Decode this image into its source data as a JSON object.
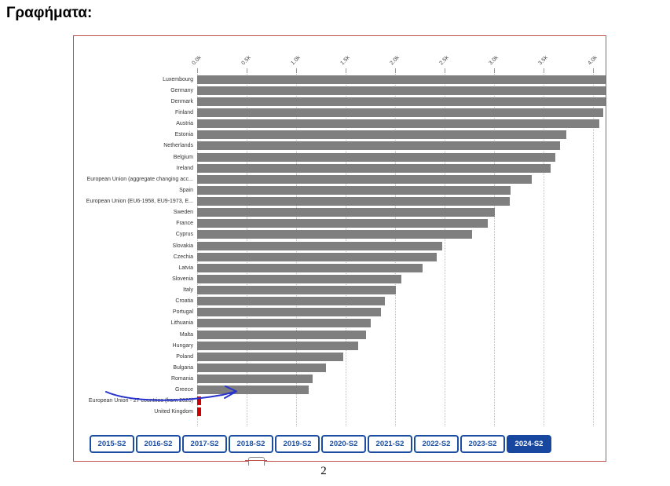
{
  "page": {
    "title": "Γραφήματα:",
    "page_number": "2"
  },
  "chart_data": {
    "type": "bar",
    "orientation": "horizontal",
    "title": "",
    "xlabel": "",
    "ylabel": "",
    "x_tick_labels": [
      "0.0k",
      "0.5k",
      "1.0k",
      "1.5k",
      "2.0k",
      "2.5k",
      "3.0k",
      "3.5k",
      "4.0k"
    ],
    "x_range_k": [
      0.0,
      4.0
    ],
    "grid": "vertical-dotted",
    "legend": "none",
    "rows": [
      {
        "label": "Luxembourg",
        "value_k": 4.15,
        "color": "gray",
        "clipped": true
      },
      {
        "label": "Germany",
        "value_k": 4.15,
        "color": "gray",
        "clipped": true
      },
      {
        "label": "Denmark",
        "value_k": 4.15,
        "color": "gray",
        "clipped": true
      },
      {
        "label": "Finland",
        "value_k": 4.1,
        "color": "gray",
        "clipped": false
      },
      {
        "label": "Austria",
        "value_k": 4.06,
        "color": "gray",
        "clipped": false
      },
      {
        "label": "Estonia",
        "value_k": 3.73,
        "color": "gray",
        "clipped": false
      },
      {
        "label": "Netherlands",
        "value_k": 3.67,
        "color": "gray",
        "clipped": false
      },
      {
        "label": "Belgium",
        "value_k": 3.62,
        "color": "gray",
        "clipped": false
      },
      {
        "label": "Ireland",
        "value_k": 3.57,
        "color": "gray",
        "clipped": false
      },
      {
        "label": "European Union (aggregate changing acc...",
        "value_k": 3.38,
        "color": "gray",
        "clipped": false
      },
      {
        "label": "Spain",
        "value_k": 3.17,
        "color": "gray",
        "clipped": false
      },
      {
        "label": "European Union (EU6-1958, EU9-1973, E...",
        "value_k": 3.16,
        "color": "gray",
        "clipped": false
      },
      {
        "label": "Sweden",
        "value_k": 3.01,
        "color": "gray",
        "clipped": false
      },
      {
        "label": "France",
        "value_k": 2.94,
        "color": "gray",
        "clipped": false
      },
      {
        "label": "Cyprus",
        "value_k": 2.78,
        "color": "gray",
        "clipped": false
      },
      {
        "label": "Slovakia",
        "value_k": 2.48,
        "color": "gray",
        "clipped": false
      },
      {
        "label": "Czechia",
        "value_k": 2.42,
        "color": "gray",
        "clipped": false
      },
      {
        "label": "Latvia",
        "value_k": 2.28,
        "color": "gray",
        "clipped": false
      },
      {
        "label": "Slovenia",
        "value_k": 2.06,
        "color": "gray",
        "clipped": false
      },
      {
        "label": "Italy",
        "value_k": 2.01,
        "color": "gray",
        "clipped": false
      },
      {
        "label": "Croatia",
        "value_k": 1.9,
        "color": "gray",
        "clipped": false
      },
      {
        "label": "Portugal",
        "value_k": 1.86,
        "color": "gray",
        "clipped": false
      },
      {
        "label": "Lithuania",
        "value_k": 1.75,
        "color": "gray",
        "clipped": false
      },
      {
        "label": "Malta",
        "value_k": 1.71,
        "color": "gray",
        "clipped": false
      },
      {
        "label": "Hungary",
        "value_k": 1.63,
        "color": "gray",
        "clipped": false
      },
      {
        "label": "Poland",
        "value_k": 1.48,
        "color": "gray",
        "clipped": false
      },
      {
        "label": "Bulgaria",
        "value_k": 1.3,
        "color": "gray",
        "clipped": false
      },
      {
        "label": "Romania",
        "value_k": 1.17,
        "color": "gray",
        "clipped": false
      },
      {
        "label": "Greece",
        "value_k": 1.13,
        "color": "gray",
        "clipped": false
      },
      {
        "label": "European Union - 27 countries (from 2020)",
        "value_k": 0.03,
        "color": "red",
        "clipped": false
      },
      {
        "label": "United Kingdom",
        "value_k": 0.03,
        "color": "red",
        "clipped": false
      }
    ],
    "annotation": {
      "type": "hand-drawn-arrow",
      "target": "Greece",
      "color": "#2633cc"
    }
  },
  "period_buttons": {
    "items": [
      "2015-S2",
      "2016-S2",
      "2017-S2",
      "2018-S2",
      "2019-S2",
      "2020-S2",
      "2021-S2",
      "2022-S2",
      "2023-S2",
      "2024-S2"
    ],
    "selected": "2024-S2"
  },
  "colors": {
    "bar": "#7f7f7f",
    "bar_na": "#cc0000",
    "frame_border": "#c0504d",
    "button_blue": "#1b4ea3",
    "button_selected_bg": "#17479e",
    "arrow": "#2633cc",
    "gridline": "#bbbbbb",
    "axis_text": "#444444",
    "label_text": "#333333"
  }
}
